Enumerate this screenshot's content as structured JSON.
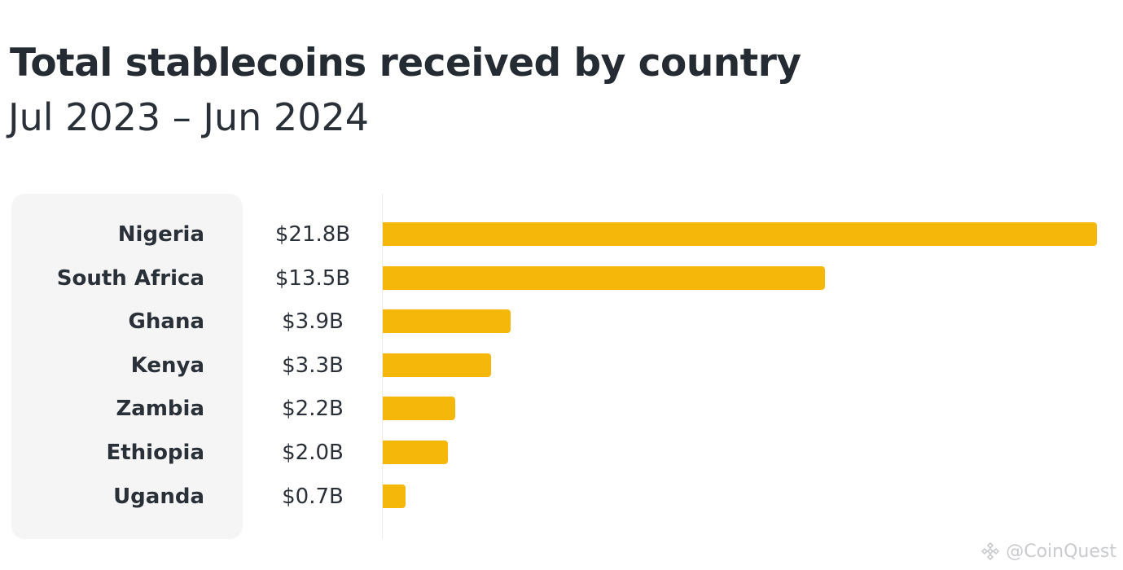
{
  "chart_data": {
    "type": "bar",
    "orientation": "horizontal",
    "title": "Total stablecoins received by country",
    "subtitle": "Jul 2023 – Jun 2024",
    "categories": [
      "Nigeria",
      "South Africa",
      "Ghana",
      "Kenya",
      "Zambia",
      "Ethiopia",
      "Uganda"
    ],
    "values": [
      21.8,
      13.5,
      3.9,
      3.3,
      2.2,
      2.0,
      0.7
    ],
    "value_labels": [
      "$21.8B",
      "$13.5B",
      "$3.9B",
      "$3.3B",
      "$2.2B",
      "$2.0B",
      "$0.7B"
    ],
    "unit": "USD billions",
    "xlim": [
      0,
      21.8
    ],
    "bar_color": "#f5b80a",
    "grid": false,
    "legend": "none"
  },
  "watermark": {
    "text": "@CoinQuest",
    "icon": "binance-logo-icon"
  }
}
